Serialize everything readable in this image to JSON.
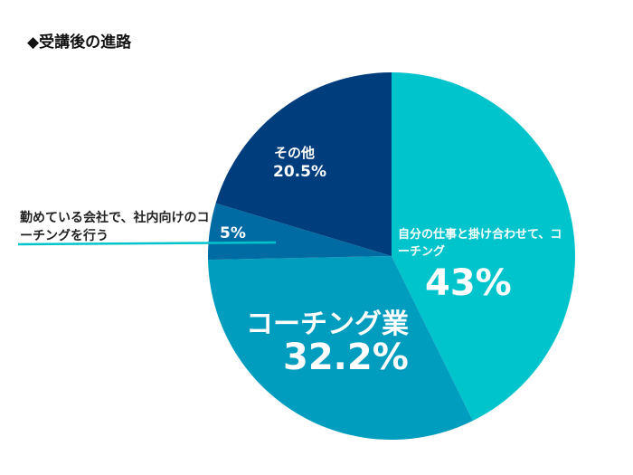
{
  "title": "◆受講後の進路",
  "chart_data": {
    "type": "pie",
    "title": "◆受講後の進路",
    "start": "top",
    "direction": "clockwise",
    "slices": [
      {
        "label": "自分の仕事と掛け合わせて、コーチング",
        "value": 43,
        "value_label": "43%",
        "color": "#00C4CC"
      },
      {
        "label": "コーチング業",
        "value": 32.2,
        "value_label": "32.2%",
        "color": "#009DBF"
      },
      {
        "label": "勤めている会社で、社内向けのコーチングを行う",
        "value": 5,
        "value_label": "5%",
        "color": "#006BA3"
      },
      {
        "label": "その他",
        "value": 20.5,
        "value_label": "20.5%",
        "color": "#003D7C"
      }
    ],
    "leader_color": "#00C4CC"
  }
}
